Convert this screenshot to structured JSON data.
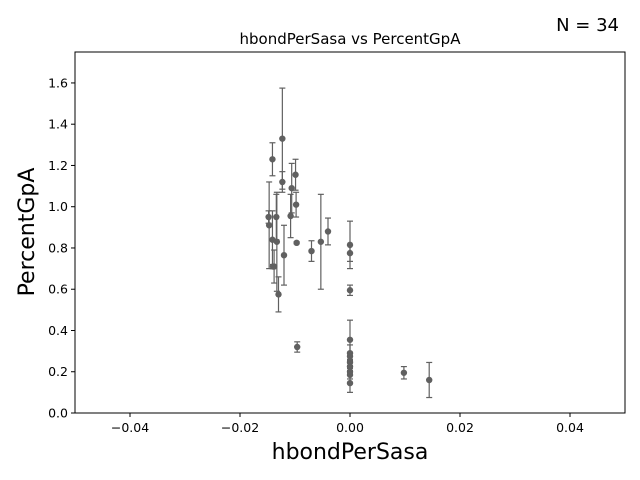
{
  "chart_data": {
    "type": "scatter",
    "title": "hbondPerSasa vs PercentGpA",
    "xlabel": "hbondPerSasa",
    "ylabel": "PercentGpA",
    "annotation": "N = 34",
    "xlim": [
      -0.05,
      0.05
    ],
    "ylim": [
      0.0,
      1.75
    ],
    "xticks": [
      -0.04,
      -0.02,
      0.0,
      0.02,
      0.04
    ],
    "xtick_labels": [
      "−0.04",
      "−0.02",
      "0.00",
      "0.02",
      "0.04"
    ],
    "yticks": [
      0.0,
      0.2,
      0.4,
      0.6,
      0.8,
      1.0,
      1.2,
      1.4,
      1.6
    ],
    "ytick_labels": [
      "0.0",
      "0.2",
      "0.4",
      "0.6",
      "0.8",
      "1.0",
      "1.2",
      "1.4",
      "1.6"
    ],
    "grid": false,
    "color": "#606060",
    "points": [
      {
        "x": -0.0148,
        "y": 0.95,
        "err": 0.03
      },
      {
        "x": -0.0147,
        "y": 0.91,
        "err": 0.21
      },
      {
        "x": -0.0141,
        "y": 1.23,
        "err": 0.08
      },
      {
        "x": -0.0141,
        "y": 0.84,
        "err": 0.14
      },
      {
        "x": -0.014,
        "y": 0.71,
        "err": 0.01
      },
      {
        "x": -0.0138,
        "y": 0.71,
        "err": 0.08
      },
      {
        "x": -0.0134,
        "y": 0.95,
        "err": 0.11
      },
      {
        "x": -0.0133,
        "y": 0.83,
        "err": 0.24
      },
      {
        "x": -0.013,
        "y": 0.575,
        "err": 0.085
      },
      {
        "x": -0.0123,
        "y": 1.33,
        "err": 0.245
      },
      {
        "x": -0.0123,
        "y": 1.12,
        "err": 0.05
      },
      {
        "x": -0.012,
        "y": 0.765,
        "err": 0.145
      },
      {
        "x": -0.0108,
        "y": 0.955,
        "err": 0.105
      },
      {
        "x": -0.0106,
        "y": 1.09,
        "err": 0.12
      },
      {
        "x": -0.0099,
        "y": 1.155,
        "err": 0.075
      },
      {
        "x": -0.0098,
        "y": 1.01,
        "err": 0.06
      },
      {
        "x": -0.0097,
        "y": 0.825,
        "err": 0.005
      },
      {
        "x": -0.0096,
        "y": 0.32,
        "err": 0.025
      },
      {
        "x": -0.007,
        "y": 0.785,
        "err": 0.05
      },
      {
        "x": -0.0053,
        "y": 0.83,
        "err": 0.23
      },
      {
        "x": -0.004,
        "y": 0.88,
        "err": 0.065
      },
      {
        "x": 0.0,
        "y": 0.815,
        "err": 0.115
      },
      {
        "x": 0.0,
        "y": 0.775,
        "err": 0.04
      },
      {
        "x": 0.0,
        "y": 0.595,
        "err": 0.025
      },
      {
        "x": 0.0,
        "y": 0.355,
        "err": 0.095
      },
      {
        "x": 0.0,
        "y": 0.29,
        "err": 0.04
      },
      {
        "x": 0.0,
        "y": 0.275,
        "err": 0.02
      },
      {
        "x": 0.0,
        "y": 0.245,
        "err": 0.015
      },
      {
        "x": 0.0,
        "y": 0.225,
        "err": 0.02
      },
      {
        "x": 0.0,
        "y": 0.2,
        "err": 0.015
      },
      {
        "x": 0.0,
        "y": 0.185,
        "err": 0.02
      },
      {
        "x": 0.0,
        "y": 0.145,
        "err": 0.045
      },
      {
        "x": 0.0098,
        "y": 0.195,
        "err": 0.03
      },
      {
        "x": 0.0144,
        "y": 0.16,
        "err": 0.085
      }
    ]
  }
}
